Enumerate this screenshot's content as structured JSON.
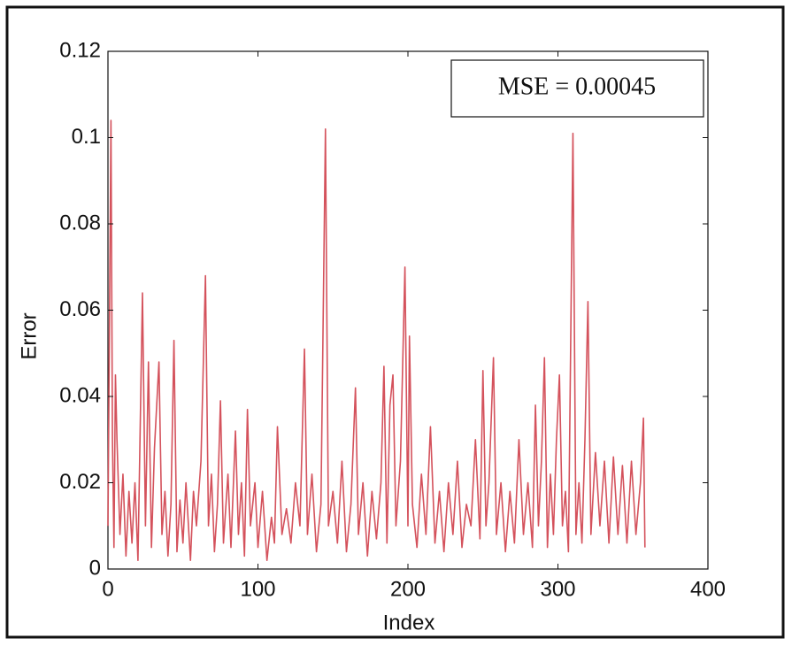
{
  "chart_data": {
    "type": "line",
    "xlabel": "Index",
    "ylabel": "Error",
    "annotation": "MSE = 0.00045",
    "xlim": [
      0,
      400
    ],
    "xticks": [
      0,
      100,
      200,
      300,
      400
    ],
    "ylim": [
      0,
      0.12
    ],
    "yticks": [
      0,
      0.02,
      0.04,
      0.06,
      0.08,
      0.1,
      0.12
    ],
    "series": [
      {
        "color": "#d4525c",
        "x": [
          0,
          2,
          3,
          4,
          5,
          6,
          8,
          10,
          12,
          14,
          16,
          18,
          20,
          23,
          25,
          27,
          29,
          31,
          34,
          36,
          38,
          40,
          42,
          44,
          46,
          48,
          50,
          52,
          55,
          57,
          59,
          62,
          65,
          67,
          69,
          71,
          73,
          75,
          77,
          80,
          82,
          85,
          87,
          89,
          91,
          93,
          95,
          98,
          100,
          103,
          106,
          109,
          111,
          113,
          116,
          119,
          122,
          125,
          128,
          131,
          133,
          136,
          139,
          142,
          145,
          147,
          150,
          153,
          156,
          159,
          162,
          165,
          167,
          170,
          173,
          176,
          179,
          182,
          184,
          186,
          188,
          190,
          192,
          195,
          198,
          200,
          201,
          203,
          206,
          209,
          212,
          215,
          218,
          221,
          224,
          227,
          230,
          233,
          236,
          239,
          242,
          245,
          248,
          250,
          252,
          254,
          257,
          259,
          262,
          265,
          268,
          271,
          274,
          277,
          280,
          283,
          285,
          287,
          289,
          291,
          293,
          295,
          297,
          299,
          301,
          303,
          305,
          307,
          310,
          312,
          314,
          316,
          318,
          320,
          322,
          325,
          328,
          331,
          334,
          337,
          340,
          343,
          346,
          349,
          352,
          355,
          357,
          358
        ],
        "values": [
          0.01,
          0.104,
          0.03,
          0.005,
          0.045,
          0.03,
          0.008,
          0.022,
          0.003,
          0.018,
          0.006,
          0.02,
          0.002,
          0.064,
          0.01,
          0.048,
          0.005,
          0.028,
          0.048,
          0.008,
          0.018,
          0.003,
          0.015,
          0.053,
          0.004,
          0.016,
          0.006,
          0.02,
          0.002,
          0.018,
          0.01,
          0.025,
          0.068,
          0.01,
          0.022,
          0.004,
          0.015,
          0.039,
          0.006,
          0.022,
          0.005,
          0.032,
          0.008,
          0.02,
          0.003,
          0.037,
          0.01,
          0.02,
          0.005,
          0.018,
          0.002,
          0.012,
          0.006,
          0.033,
          0.008,
          0.014,
          0.006,
          0.02,
          0.01,
          0.051,
          0.008,
          0.022,
          0.004,
          0.015,
          0.102,
          0.01,
          0.018,
          0.006,
          0.025,
          0.004,
          0.015,
          0.042,
          0.008,
          0.02,
          0.003,
          0.018,
          0.007,
          0.02,
          0.047,
          0.006,
          0.038,
          0.045,
          0.01,
          0.025,
          0.07,
          0.01,
          0.054,
          0.015,
          0.005,
          0.022,
          0.008,
          0.033,
          0.006,
          0.018,
          0.004,
          0.02,
          0.008,
          0.025,
          0.005,
          0.015,
          0.01,
          0.03,
          0.007,
          0.046,
          0.01,
          0.02,
          0.049,
          0.008,
          0.02,
          0.004,
          0.018,
          0.006,
          0.03,
          0.008,
          0.02,
          0.005,
          0.038,
          0.01,
          0.025,
          0.049,
          0.005,
          0.022,
          0.008,
          0.03,
          0.045,
          0.01,
          0.018,
          0.004,
          0.101,
          0.008,
          0.02,
          0.006,
          0.03,
          0.062,
          0.008,
          0.027,
          0.01,
          0.025,
          0.006,
          0.026,
          0.008,
          0.024,
          0.006,
          0.025,
          0.008,
          0.02,
          0.035,
          0.005
        ]
      }
    ]
  }
}
